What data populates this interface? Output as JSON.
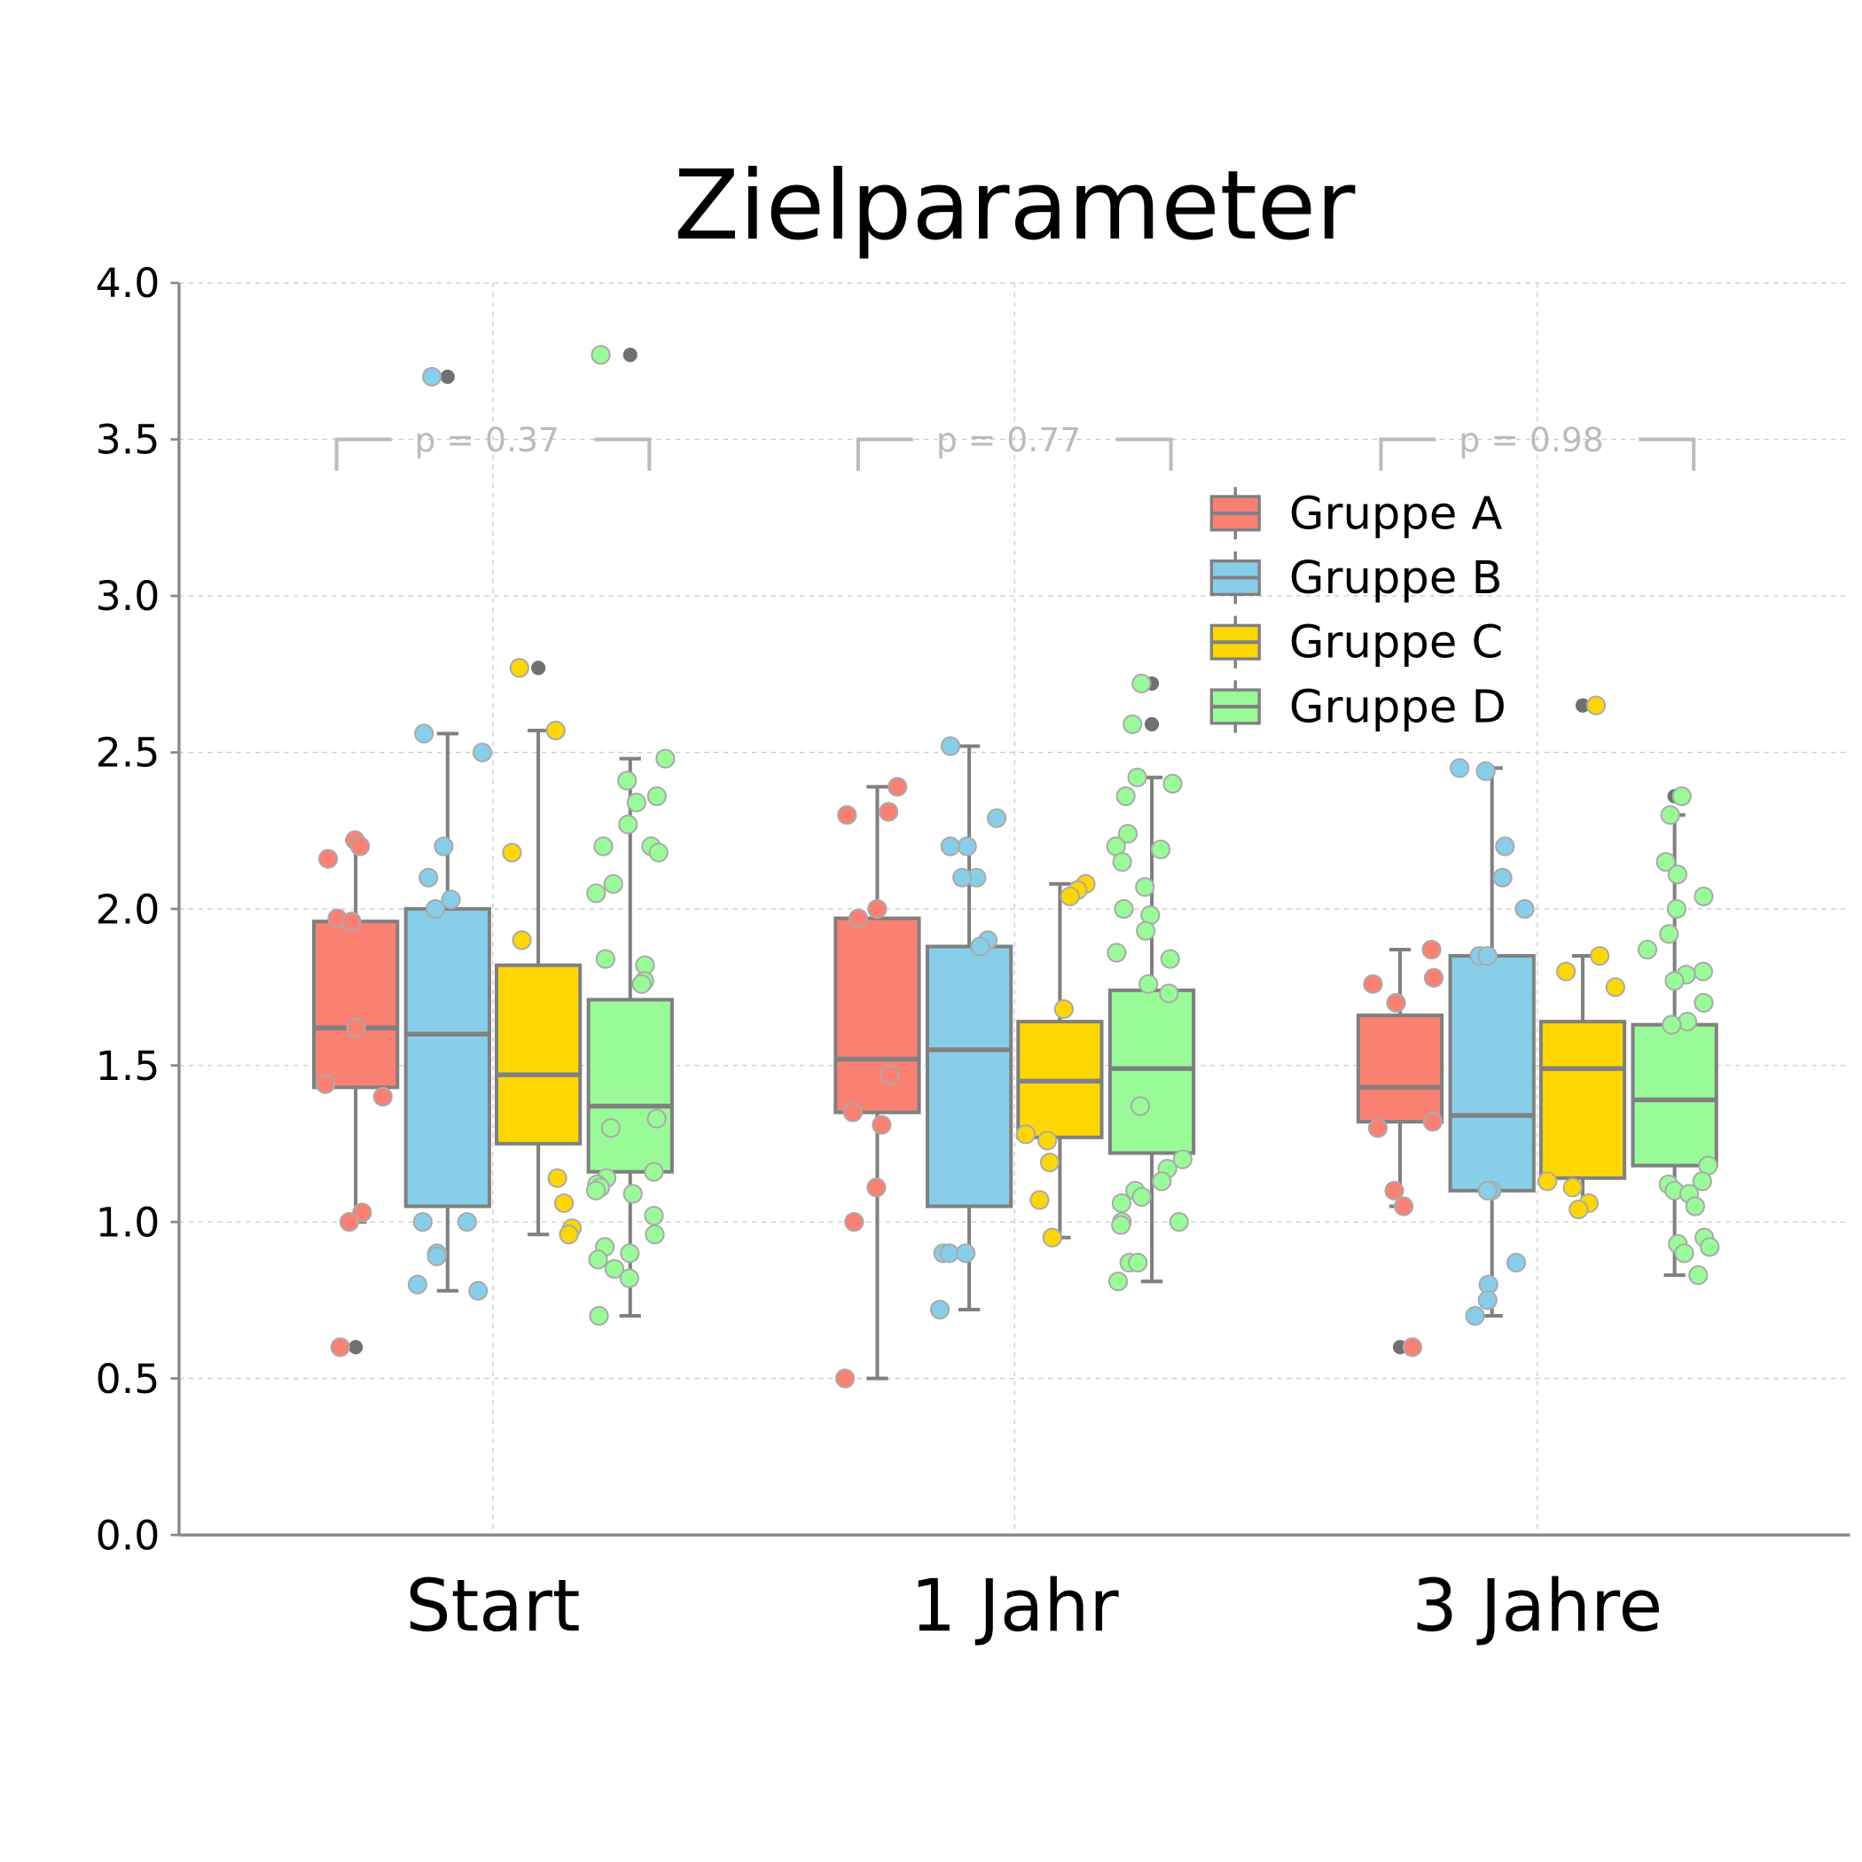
{
  "chart_data": {
    "type": "box",
    "title": "Zielparameter",
    "xlabel": "",
    "ylabel": "",
    "ylim": [
      0,
      4.0
    ],
    "yticks": [
      "0.0",
      "0.5",
      "1.0",
      "1.5",
      "2.0",
      "2.5",
      "3.0",
      "3.5",
      "4.0"
    ],
    "categories": [
      "Start",
      "1 Jahr",
      "3 Jahre"
    ],
    "grid": true,
    "legend_position": "upper-right",
    "p_values": [
      "p = 0.37",
      "p = 0.77",
      "p = 0.98"
    ],
    "series": [
      {
        "name": "Gruppe A",
        "color": "#FA8072",
        "boxes": [
          {
            "q1": 1.43,
            "median": 1.62,
            "q3": 1.96,
            "whisker_low": 1.0,
            "whisker_high": 2.22,
            "outliers": [
              0.6
            ],
            "points": [
              2.22,
              2.2,
              2.16,
              1.97,
              1.96,
              1.62,
              1.44,
              1.4,
              1.03,
              1.0,
              0.6
            ]
          },
          {
            "q1": 1.35,
            "median": 1.52,
            "q3": 1.97,
            "whisker_low": 0.5,
            "whisker_high": 2.39,
            "outliers": [],
            "points": [
              2.39,
              2.31,
              2.3,
              2.0,
              1.97,
              1.47,
              1.35,
              1.31,
              1.11,
              1.0,
              0.5
            ]
          },
          {
            "q1": 1.32,
            "median": 1.43,
            "q3": 1.66,
            "whisker_low": 1.05,
            "whisker_high": 1.87,
            "outliers": [
              0.6
            ],
            "points": [
              1.87,
              1.78,
              1.76,
              1.7,
              1.32,
              1.3,
              1.1,
              1.05,
              0.6
            ]
          }
        ]
      },
      {
        "name": "Gruppe B",
        "color": "#87CEEB",
        "boxes": [
          {
            "q1": 1.05,
            "median": 1.6,
            "q3": 2.0,
            "whisker_low": 0.78,
            "whisker_high": 2.56,
            "outliers": [
              3.7
            ],
            "points": [
              3.7,
              2.56,
              2.5,
              2.2,
              2.1,
              2.03,
              2.0,
              1.0,
              1.0,
              0.9,
              0.89,
              0.8,
              0.78
            ]
          },
          {
            "q1": 1.05,
            "median": 1.55,
            "q3": 1.88,
            "whisker_low": 0.72,
            "whisker_high": 2.52,
            "outliers": [],
            "points": [
              2.52,
              2.29,
              2.2,
              2.2,
              2.1,
              2.1,
              1.9,
              1.88,
              0.9,
              0.9,
              0.9,
              0.72
            ]
          },
          {
            "q1": 1.1,
            "median": 1.34,
            "q3": 1.85,
            "whisker_low": 0.7,
            "whisker_high": 2.45,
            "outliers": [],
            "points": [
              2.45,
              2.44,
              2.2,
              2.1,
              2.0,
              1.85,
              1.85,
              1.1,
              1.1,
              0.87,
              0.8,
              0.75,
              0.7
            ]
          }
        ]
      },
      {
        "name": "Gruppe C",
        "color": "#FFD700",
        "boxes": [
          {
            "q1": 1.25,
            "median": 1.47,
            "q3": 1.82,
            "whisker_low": 0.96,
            "whisker_high": 2.57,
            "outliers": [
              2.77
            ],
            "points": [
              2.77,
              2.57,
              2.18,
              1.9,
              1.14,
              1.06,
              0.98,
              0.96
            ]
          },
          {
            "q1": 1.27,
            "median": 1.45,
            "q3": 1.64,
            "whisker_low": 0.95,
            "whisker_high": 2.08,
            "outliers": [],
            "points": [
              2.08,
              2.06,
              2.04,
              1.68,
              1.28,
              1.26,
              1.19,
              1.07,
              0.95
            ]
          },
          {
            "q1": 1.14,
            "median": 1.49,
            "q3": 1.64,
            "whisker_low": 1.04,
            "whisker_high": 1.85,
            "outliers": [
              2.65
            ],
            "points": [
              2.65,
              1.85,
              1.8,
              1.75,
              1.13,
              1.11,
              1.06,
              1.04
            ]
          }
        ]
      },
      {
        "name": "Gruppe D",
        "color": "#98FB98",
        "boxes": [
          {
            "q1": 1.16,
            "median": 1.37,
            "q3": 1.71,
            "whisker_low": 0.7,
            "whisker_high": 2.48,
            "outliers": [
              3.77
            ],
            "points": [
              3.77,
              2.48,
              2.41,
              2.36,
              2.34,
              2.27,
              2.2,
              2.2,
              2.18,
              2.08,
              2.05,
              1.84,
              1.82,
              1.77,
              1.76,
              1.33,
              1.3,
              1.16,
              1.14,
              1.12,
              1.11,
              1.1,
              1.09,
              1.02,
              0.96,
              0.92,
              0.9,
              0.88,
              0.85,
              0.82,
              0.7
            ]
          },
          {
            "q1": 1.22,
            "median": 1.49,
            "q3": 1.74,
            "whisker_low": 0.81,
            "whisker_high": 2.42,
            "outliers": [
              2.59,
              2.72
            ],
            "points": [
              2.72,
              2.59,
              2.42,
              2.4,
              2.36,
              2.24,
              2.2,
              2.19,
              2.15,
              2.07,
              2.0,
              1.98,
              1.93,
              1.86,
              1.84,
              1.76,
              1.73,
              1.37,
              1.2,
              1.17,
              1.13,
              1.1,
              1.08,
              1.06,
              1.0,
              1.0,
              0.99,
              0.87,
              0.87,
              0.81
            ]
          },
          {
            "q1": 1.18,
            "median": 1.39,
            "q3": 1.63,
            "whisker_low": 0.83,
            "whisker_high": 2.3,
            "outliers": [
              2.36
            ],
            "points": [
              2.36,
              2.3,
              2.15,
              2.11,
              2.04,
              2.0,
              1.92,
              1.87,
              1.8,
              1.79,
              1.77,
              1.7,
              1.64,
              1.63,
              1.18,
              1.13,
              1.12,
              1.1,
              1.09,
              1.05,
              0.95,
              0.93,
              0.92,
              0.9,
              0.83
            ]
          }
        ]
      }
    ]
  }
}
